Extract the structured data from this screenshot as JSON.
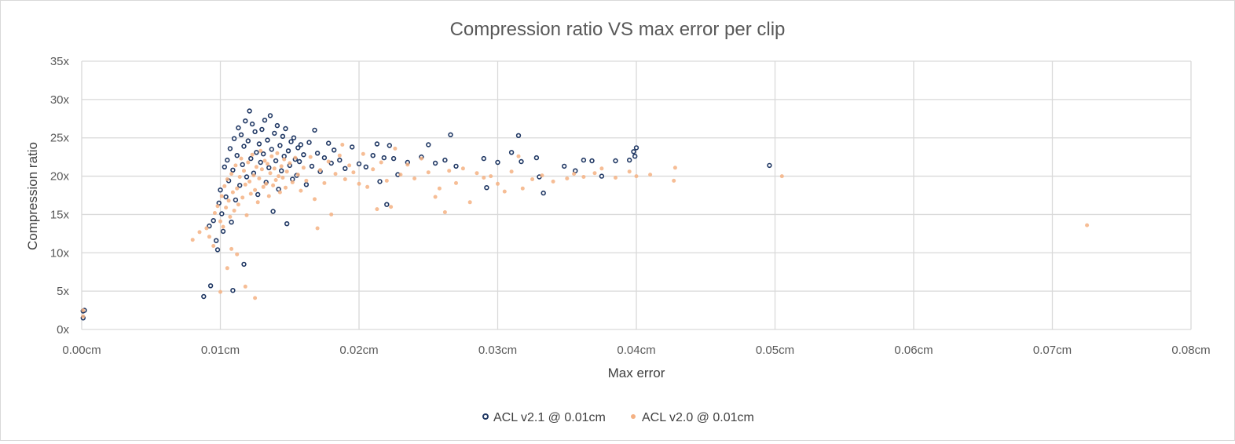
{
  "chart_data": {
    "type": "scatter",
    "title": "Compression ratio VS max error per clip",
    "xlabel": "Max error",
    "ylabel": "Compression ratio",
    "xlim": [
      0,
      0.08
    ],
    "ylim": [
      0,
      35
    ],
    "x_ticks": [
      "0.00cm",
      "0.01cm",
      "0.02cm",
      "0.03cm",
      "0.04cm",
      "0.05cm",
      "0.06cm",
      "0.07cm",
      "0.08cm"
    ],
    "y_ticks": [
      "0x",
      "5x",
      "10x",
      "15x",
      "20x",
      "25x",
      "30x",
      "35x"
    ],
    "grid": true,
    "legend_position": "bottom",
    "series": [
      {
        "name": "ACL v2.1 @ 0.01cm",
        "color": "#203864",
        "marker": "hollow-circle",
        "points": [
          [
            0.0001,
            1.5
          ],
          [
            0.0001,
            2.4
          ],
          [
            0.0002,
            2.5
          ],
          [
            0.0088,
            4.3
          ],
          [
            0.0093,
            5.7
          ],
          [
            0.0109,
            5.1
          ],
          [
            0.0117,
            8.5
          ],
          [
            0.0092,
            13.5
          ],
          [
            0.0095,
            14.2
          ],
          [
            0.0097,
            11.6
          ],
          [
            0.0098,
            10.4
          ],
          [
            0.0099,
            16.5
          ],
          [
            0.01,
            18.2
          ],
          [
            0.0101,
            15.1
          ],
          [
            0.0102,
            12.8
          ],
          [
            0.0103,
            21.2
          ],
          [
            0.0104,
            17.3
          ],
          [
            0.0105,
            22.1
          ],
          [
            0.0106,
            19.4
          ],
          [
            0.0107,
            23.6
          ],
          [
            0.0108,
            14.0
          ],
          [
            0.0109,
            20.8
          ],
          [
            0.011,
            24.9
          ],
          [
            0.0111,
            16.9
          ],
          [
            0.0112,
            22.7
          ],
          [
            0.0113,
            26.3
          ],
          [
            0.0114,
            18.8
          ],
          [
            0.0115,
            25.4
          ],
          [
            0.0116,
            21.5
          ],
          [
            0.0117,
            23.9
          ],
          [
            0.0118,
            27.2
          ],
          [
            0.0119,
            19.9
          ],
          [
            0.012,
            24.6
          ],
          [
            0.0121,
            28.5
          ],
          [
            0.0122,
            22.3
          ],
          [
            0.0123,
            26.8
          ],
          [
            0.0124,
            20.4
          ],
          [
            0.0125,
            25.8
          ],
          [
            0.0126,
            23.1
          ],
          [
            0.0127,
            17.6
          ],
          [
            0.0128,
            24.2
          ],
          [
            0.0129,
            21.8
          ],
          [
            0.013,
            26.1
          ],
          [
            0.0131,
            22.9
          ],
          [
            0.0132,
            27.3
          ],
          [
            0.0133,
            19.2
          ],
          [
            0.0134,
            24.7
          ],
          [
            0.0135,
            21.1
          ],
          [
            0.0136,
            27.9
          ],
          [
            0.0137,
            23.5
          ],
          [
            0.0138,
            15.4
          ],
          [
            0.0139,
            25.6
          ],
          [
            0.014,
            22.0
          ],
          [
            0.0141,
            26.6
          ],
          [
            0.0142,
            18.3
          ],
          [
            0.0143,
            24.0
          ],
          [
            0.0144,
            20.7
          ],
          [
            0.0145,
            25.2
          ],
          [
            0.0146,
            22.6
          ],
          [
            0.0147,
            26.2
          ],
          [
            0.0148,
            13.8
          ],
          [
            0.0149,
            23.3
          ],
          [
            0.015,
            21.4
          ],
          [
            0.0151,
            24.5
          ],
          [
            0.0152,
            19.6
          ],
          [
            0.0153,
            25.0
          ],
          [
            0.0154,
            22.2
          ],
          [
            0.0155,
            20.1
          ],
          [
            0.0156,
            23.7
          ],
          [
            0.0157,
            21.9
          ],
          [
            0.0158,
            24.1
          ],
          [
            0.016,
            22.8
          ],
          [
            0.0162,
            18.9
          ],
          [
            0.0164,
            24.4
          ],
          [
            0.0166,
            21.3
          ],
          [
            0.0168,
            26.0
          ],
          [
            0.017,
            23.0
          ],
          [
            0.0172,
            20.6
          ],
          [
            0.0175,
            22.4
          ],
          [
            0.0178,
            24.3
          ],
          [
            0.018,
            21.7
          ],
          [
            0.0182,
            23.4
          ],
          [
            0.0186,
            22.1
          ],
          [
            0.019,
            21.0
          ],
          [
            0.0195,
            23.8
          ],
          [
            0.02,
            21.6
          ],
          [
            0.0205,
            21.2
          ],
          [
            0.021,
            22.7
          ],
          [
            0.0213,
            24.2
          ],
          [
            0.0215,
            19.3
          ],
          [
            0.0218,
            22.4
          ],
          [
            0.022,
            16.3
          ],
          [
            0.0222,
            24.0
          ],
          [
            0.0225,
            22.3
          ],
          [
            0.0228,
            20.2
          ],
          [
            0.0235,
            21.8
          ],
          [
            0.0245,
            22.5
          ],
          [
            0.025,
            24.1
          ],
          [
            0.0255,
            21.7
          ],
          [
            0.0262,
            22.1
          ],
          [
            0.0266,
            25.4
          ],
          [
            0.027,
            21.3
          ],
          [
            0.029,
            22.3
          ],
          [
            0.0292,
            18.5
          ],
          [
            0.03,
            21.8
          ],
          [
            0.031,
            23.1
          ],
          [
            0.0315,
            25.3
          ],
          [
            0.0317,
            21.9
          ],
          [
            0.0328,
            22.4
          ],
          [
            0.033,
            19.9
          ],
          [
            0.0333,
            17.8
          ],
          [
            0.0348,
            21.3
          ],
          [
            0.0356,
            20.7
          ],
          [
            0.0362,
            22.1
          ],
          [
            0.0368,
            22.0
          ],
          [
            0.0375,
            20.0
          ],
          [
            0.0385,
            22.0
          ],
          [
            0.0395,
            22.1
          ],
          [
            0.0398,
            23.2
          ],
          [
            0.04,
            23.7
          ],
          [
            0.0399,
            22.6
          ],
          [
            0.0496,
            21.4
          ]
        ]
      },
      {
        "name": "ACL v2.0 @ 0.01cm",
        "color": "#f4b183",
        "marker": "filled-circle",
        "points": [
          [
            0.0001,
            1.7
          ],
          [
            0.0001,
            2.5
          ],
          [
            0.008,
            11.7
          ],
          [
            0.0085,
            12.7
          ],
          [
            0.009,
            13.2
          ],
          [
            0.0092,
            12.1
          ],
          [
            0.0095,
            10.9
          ],
          [
            0.01,
            4.9
          ],
          [
            0.0105,
            8.0
          ],
          [
            0.0108,
            10.5
          ],
          [
            0.0112,
            9.8
          ],
          [
            0.0118,
            5.6
          ],
          [
            0.0125,
            4.1
          ],
          [
            0.0096,
            15.2
          ],
          [
            0.0098,
            16.1
          ],
          [
            0.01,
            14.1
          ],
          [
            0.0101,
            17.4
          ],
          [
            0.0102,
            13.4
          ],
          [
            0.0103,
            18.7
          ],
          [
            0.0104,
            15.9
          ],
          [
            0.0105,
            19.6
          ],
          [
            0.0106,
            16.8
          ],
          [
            0.0107,
            14.7
          ],
          [
            0.0108,
            20.3
          ],
          [
            0.0109,
            17.9
          ],
          [
            0.011,
            15.5
          ],
          [
            0.0111,
            21.4
          ],
          [
            0.0112,
            18.4
          ],
          [
            0.0113,
            16.3
          ],
          [
            0.0114,
            19.9
          ],
          [
            0.0115,
            22.3
          ],
          [
            0.0116,
            17.2
          ],
          [
            0.0117,
            20.7
          ],
          [
            0.0118,
            18.9
          ],
          [
            0.0119,
            14.9
          ],
          [
            0.012,
            21.8
          ],
          [
            0.0121,
            19.3
          ],
          [
            0.0122,
            17.7
          ],
          [
            0.0123,
            22.8
          ],
          [
            0.0124,
            20.1
          ],
          [
            0.0125,
            18.2
          ],
          [
            0.0126,
            21.2
          ],
          [
            0.0127,
            16.6
          ],
          [
            0.0128,
            19.7
          ],
          [
            0.0129,
            23.3
          ],
          [
            0.013,
            20.9
          ],
          [
            0.0131,
            18.6
          ],
          [
            0.0132,
            22.0
          ],
          [
            0.0133,
            19.0
          ],
          [
            0.0134,
            21.6
          ],
          [
            0.0135,
            17.4
          ],
          [
            0.0136,
            20.4
          ],
          [
            0.0137,
            22.6
          ],
          [
            0.0138,
            18.8
          ],
          [
            0.0139,
            21.0
          ],
          [
            0.014,
            19.5
          ],
          [
            0.0141,
            23.0
          ],
          [
            0.0142,
            20.0
          ],
          [
            0.0143,
            17.9
          ],
          [
            0.0144,
            21.3
          ],
          [
            0.0145,
            19.8
          ],
          [
            0.0146,
            22.2
          ],
          [
            0.0147,
            18.5
          ],
          [
            0.0148,
            20.6
          ],
          [
            0.015,
            21.7
          ],
          [
            0.0152,
            19.2
          ],
          [
            0.0154,
            22.4
          ],
          [
            0.0156,
            20.2
          ],
          [
            0.0158,
            18.1
          ],
          [
            0.016,
            21.1
          ],
          [
            0.0162,
            19.4
          ],
          [
            0.0165,
            22.5
          ],
          [
            0.0168,
            17.0
          ],
          [
            0.017,
            13.2
          ],
          [
            0.0172,
            20.8
          ],
          [
            0.0175,
            19.1
          ],
          [
            0.0178,
            21.9
          ],
          [
            0.018,
            15.0
          ],
          [
            0.0183,
            20.3
          ],
          [
            0.0186,
            22.7
          ],
          [
            0.0188,
            24.1
          ],
          [
            0.019,
            19.6
          ],
          [
            0.0193,
            21.4
          ],
          [
            0.0196,
            20.5
          ],
          [
            0.02,
            19.0
          ],
          [
            0.0203,
            22.9
          ],
          [
            0.0206,
            18.6
          ],
          [
            0.021,
            20.9
          ],
          [
            0.0213,
            15.7
          ],
          [
            0.0216,
            21.8
          ],
          [
            0.022,
            19.4
          ],
          [
            0.0223,
            16.0
          ],
          [
            0.0226,
            23.6
          ],
          [
            0.023,
            20.2
          ],
          [
            0.0235,
            21.5
          ],
          [
            0.024,
            19.7
          ],
          [
            0.0245,
            22.3
          ],
          [
            0.025,
            20.5
          ],
          [
            0.0255,
            17.3
          ],
          [
            0.0258,
            18.4
          ],
          [
            0.0262,
            15.3
          ],
          [
            0.0265,
            20.7
          ],
          [
            0.027,
            19.1
          ],
          [
            0.0275,
            21.0
          ],
          [
            0.028,
            16.6
          ],
          [
            0.0285,
            20.4
          ],
          [
            0.029,
            19.8
          ],
          [
            0.0295,
            20.0
          ],
          [
            0.03,
            19.0
          ],
          [
            0.0305,
            18.0
          ],
          [
            0.031,
            20.6
          ],
          [
            0.0315,
            22.6
          ],
          [
            0.0318,
            18.4
          ],
          [
            0.0325,
            19.6
          ],
          [
            0.0332,
            20.1
          ],
          [
            0.034,
            19.3
          ],
          [
            0.035,
            19.7
          ],
          [
            0.0355,
            20.3
          ],
          [
            0.0362,
            19.9
          ],
          [
            0.037,
            20.4
          ],
          [
            0.0375,
            21.0
          ],
          [
            0.0385,
            19.8
          ],
          [
            0.0395,
            20.6
          ],
          [
            0.04,
            20.0
          ],
          [
            0.041,
            20.2
          ],
          [
            0.0427,
            19.4
          ],
          [
            0.0428,
            21.1
          ],
          [
            0.0505,
            20.0
          ],
          [
            0.0725,
            13.6
          ]
        ]
      }
    ]
  }
}
